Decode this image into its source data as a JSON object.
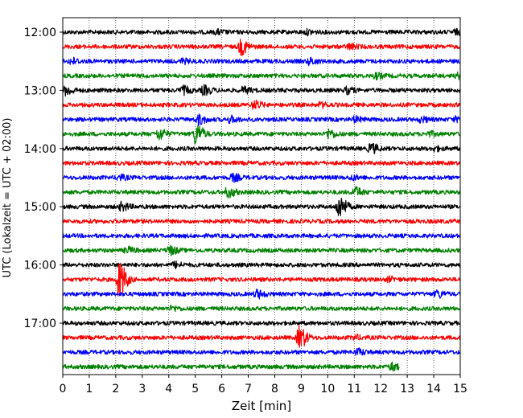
{
  "chart_data": {
    "type": "line",
    "title": "",
    "xlabel": "Zeit  [min]",
    "ylabel": "UTC (Lokalzeit = UTC + 02:00)",
    "xlim": [
      0,
      15
    ],
    "xticks": [
      0,
      1,
      2,
      3,
      4,
      5,
      6,
      7,
      8,
      9,
      10,
      11,
      12,
      13,
      14,
      15
    ],
    "grid": "vertical dotted",
    "ytick_labels": [
      "12:00",
      "13:00",
      "14:00",
      "15:00",
      "16:00",
      "17:00"
    ],
    "colors": [
      "#000000",
      "#ff0000",
      "#0000ff",
      "#008000"
    ],
    "rows_per_hour": 4,
    "row_interval_min": 15,
    "series": [
      {
        "start": "12:00",
        "color": "#000000",
        "x_end": 15,
        "events": [
          [
            5.8,
            0.4
          ],
          [
            9.2,
            0.4
          ],
          [
            14.8,
            0.4
          ]
        ]
      },
      {
        "start": "12:15",
        "color": "#ff0000",
        "x_end": 15,
        "events": [
          [
            6.7,
            1.6
          ],
          [
            10.8,
            0.5
          ]
        ]
      },
      {
        "start": "12:30",
        "color": "#0000ff",
        "x_end": 15,
        "events": [
          [
            0.3,
            0.6
          ],
          [
            4.5,
            0.4
          ],
          [
            9.3,
            0.6
          ]
        ]
      },
      {
        "start": "12:45",
        "color": "#008000",
        "x_end": 15,
        "events": [
          [
            11.8,
            0.5
          ],
          [
            14.9,
            0.5
          ]
        ]
      },
      {
        "start": "13:00",
        "color": "#000000",
        "x_end": 15,
        "events": [
          [
            0.1,
            0.9
          ],
          [
            4.5,
            0.8
          ],
          [
            5.3,
            0.9
          ],
          [
            6.8,
            0.6
          ],
          [
            10.7,
            0.6
          ]
        ]
      },
      {
        "start": "13:15",
        "color": "#ff0000",
        "x_end": 15,
        "events": [
          [
            7.2,
            0.8
          ],
          [
            9.7,
            0.4
          ]
        ]
      },
      {
        "start": "13:30",
        "color": "#0000ff",
        "x_end": 15,
        "events": [
          [
            5.1,
            1.0
          ],
          [
            6.3,
            0.6
          ],
          [
            11.0,
            0.5
          ],
          [
            13.5,
            0.5
          ],
          [
            14.8,
            0.4
          ]
        ]
      },
      {
        "start": "13:45",
        "color": "#008000",
        "x_end": 15,
        "events": [
          [
            3.6,
            1.1
          ],
          [
            5.0,
            2.2
          ],
          [
            10.0,
            0.9
          ],
          [
            13.8,
            0.4
          ]
        ]
      },
      {
        "start": "14:00",
        "color": "#000000",
        "x_end": 15,
        "events": [
          [
            11.6,
            1.0
          ],
          [
            14.0,
            0.4
          ]
        ]
      },
      {
        "start": "14:15",
        "color": "#ff0000",
        "x_end": 15,
        "events": []
      },
      {
        "start": "14:30",
        "color": "#0000ff",
        "x_end": 15,
        "events": [
          [
            2.1,
            0.5
          ],
          [
            6.4,
            0.7
          ],
          [
            10.9,
            0.4
          ]
        ]
      },
      {
        "start": "14:45",
        "color": "#008000",
        "x_end": 15,
        "events": [
          [
            6.2,
            1.0
          ],
          [
            11.0,
            1.0
          ]
        ]
      },
      {
        "start": "15:00",
        "color": "#000000",
        "x_end": 15,
        "events": [
          [
            2.2,
            0.8
          ],
          [
            10.4,
            2.4
          ]
        ]
      },
      {
        "start": "15:15",
        "color": "#ff0000",
        "x_end": 15,
        "events": []
      },
      {
        "start": "15:30",
        "color": "#0000ff",
        "x_end": 15,
        "events": []
      },
      {
        "start": "15:45",
        "color": "#008000",
        "x_end": 15,
        "events": [
          [
            2.4,
            0.6
          ],
          [
            4.0,
            0.9
          ]
        ]
      },
      {
        "start": "16:00",
        "color": "#000000",
        "x_end": 15,
        "events": [
          [
            4.2,
            0.5
          ]
        ]
      },
      {
        "start": "16:15",
        "color": "#ff0000",
        "x_end": 15,
        "events": [
          [
            2.1,
            4.0
          ],
          [
            12.3,
            0.4
          ]
        ]
      },
      {
        "start": "16:30",
        "color": "#0000ff",
        "x_end": 15,
        "events": [
          [
            7.3,
            0.8
          ],
          [
            14.1,
            0.7
          ]
        ]
      },
      {
        "start": "16:45",
        "color": "#008000",
        "x_end": 15,
        "events": [
          [
            4.1,
            0.4
          ]
        ]
      },
      {
        "start": "17:00",
        "color": "#000000",
        "x_end": 15,
        "events": []
      },
      {
        "start": "17:15",
        "color": "#ff0000",
        "x_end": 15,
        "events": [
          [
            8.9,
            2.4
          ],
          [
            11.0,
            0.4
          ]
        ]
      },
      {
        "start": "17:30",
        "color": "#0000ff",
        "x_end": 15,
        "events": [
          [
            11.1,
            0.6
          ]
        ]
      },
      {
        "start": "17:45",
        "color": "#008000",
        "x_end": 12.7,
        "events": [
          [
            12.4,
            0.7
          ]
        ]
      }
    ]
  }
}
